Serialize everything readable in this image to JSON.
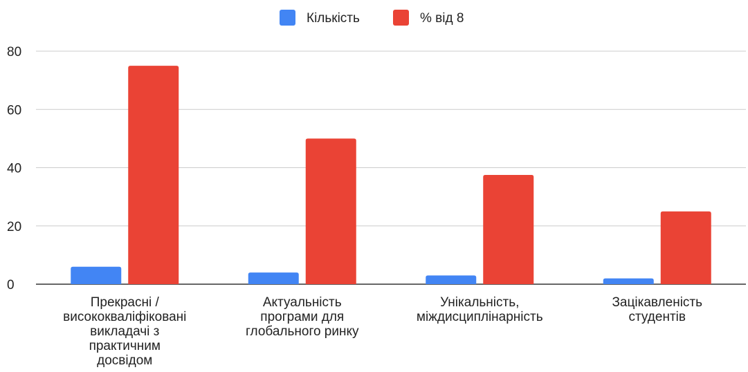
{
  "chart_data": {
    "type": "bar",
    "title": "",
    "xlabel": "",
    "ylabel": "",
    "categories": [
      [
        "Прекрасні /",
        "висококваліфіковані",
        "викладачі з",
        "практичним",
        "досвідом"
      ],
      [
        "Актуальність",
        "програми для",
        "глобального ринку"
      ],
      [
        "Унікальність,",
        "міждисциплінарність"
      ],
      [
        "Зацікавленість",
        "студентів"
      ]
    ],
    "series": [
      {
        "name": "Кількість",
        "color": "#4285f4",
        "values": [
          6,
          4,
          3,
          2
        ]
      },
      {
        "name": "% від 8",
        "color": "#ea4335",
        "values": [
          75,
          50,
          37.5,
          25
        ]
      }
    ],
    "ylim": [
      0,
      80
    ],
    "yticks": [
      "0",
      "20",
      "40",
      "60",
      "80"
    ],
    "grid": true,
    "legend": "top-center"
  }
}
